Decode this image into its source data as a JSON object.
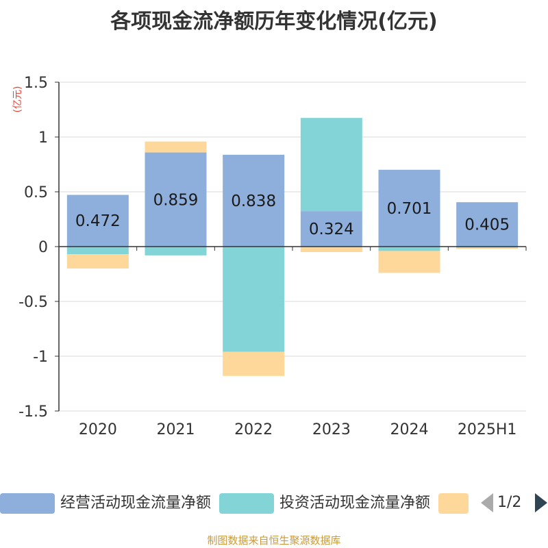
{
  "chart_data": {
    "type": "bar",
    "stacked": true,
    "title": "各项现金流净额历年变化情况(亿元)",
    "ylabel": "(亿元)",
    "ylim": [
      -1.5,
      1.5
    ],
    "yticks": [
      1.5,
      1,
      0.5,
      0,
      -0.5,
      -1,
      -1.5
    ],
    "ytick_labels": [
      "1.5",
      "1",
      "0.5",
      "0",
      "-0.5",
      "-1",
      "-1.5"
    ],
    "categories": [
      "2020",
      "2021",
      "2022",
      "2023",
      "2024",
      "2025H1"
    ],
    "grid": true,
    "legend_position": "bottom",
    "series": [
      {
        "name": "经营活动现金流量净额",
        "color": "#8eaedb",
        "values": [
          0.472,
          0.859,
          0.838,
          0.324,
          0.701,
          0.405
        ],
        "labels": [
          "0.472",
          "0.859",
          "0.838",
          "0.324",
          "0.701",
          "0.405"
        ]
      },
      {
        "name": "投资活动现金流量净额",
        "color": "#83d4d6",
        "values": [
          -0.07,
          -0.08,
          -0.96,
          0.85,
          -0.04,
          -0.01
        ]
      },
      {
        "name": "",
        "color": "#fdd89a",
        "values": [
          -0.13,
          0.1,
          -0.22,
          -0.05,
          -0.2,
          -0.01
        ]
      }
    ]
  },
  "legend": {
    "items": [
      {
        "label": "经营活动现金流量净额",
        "color": "#8eaedb"
      },
      {
        "label": "投资活动现金流量净额",
        "color": "#83d4d6"
      },
      {
        "label": "",
        "color": "#fdd89a"
      }
    ],
    "pager": "1/2"
  },
  "footer": "制图数据来自恒生聚源数据库"
}
